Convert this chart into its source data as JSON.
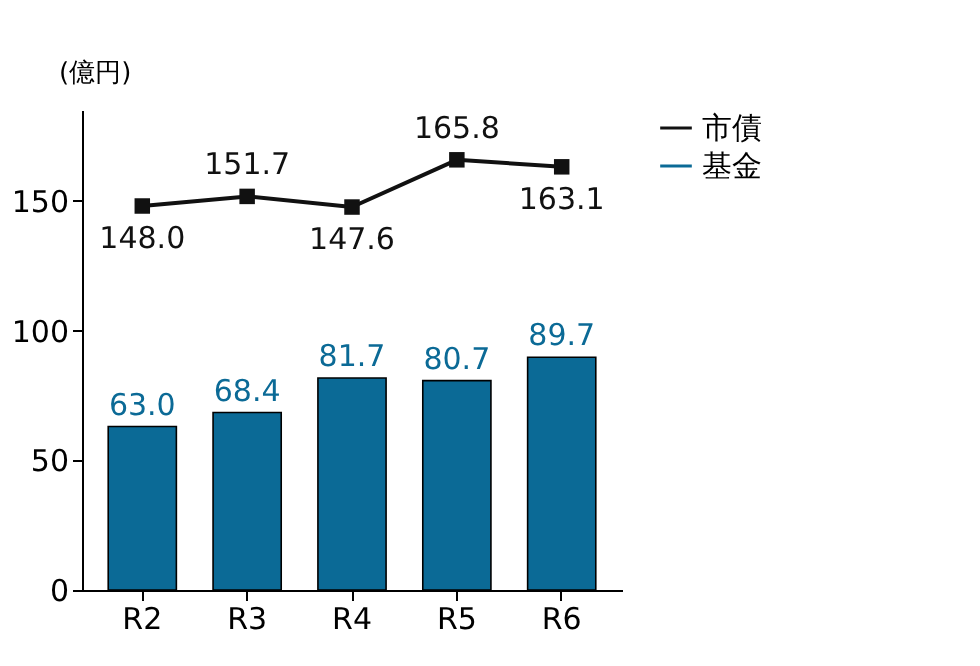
{
  "chart_data": {
    "type": "bar",
    "ylabel": "(億円)",
    "categories": [
      "R2",
      "R3",
      "R4",
      "R5",
      "R6"
    ],
    "series": [
      {
        "name": "市債",
        "type": "line",
        "color": "#111111",
        "values": [
          148.0,
          151.7,
          147.6,
          165.8,
          163.1
        ],
        "value_labels": [
          "148.0",
          "151.7",
          "147.6",
          "165.8",
          "163.1"
        ]
      },
      {
        "name": "基金",
        "color": "#0b6a96",
        "values": [
          63.0,
          68.4,
          81.7,
          80.7,
          89.7
        ],
        "value_labels": [
          "63.0",
          "68.4",
          "81.7",
          "80.7",
          "89.7"
        ]
      }
    ],
    "ylim": [
      0,
      185
    ],
    "yticks": [
      0,
      50,
      100,
      150
    ],
    "grid": false,
    "legend": "right",
    "marker": "square"
  }
}
